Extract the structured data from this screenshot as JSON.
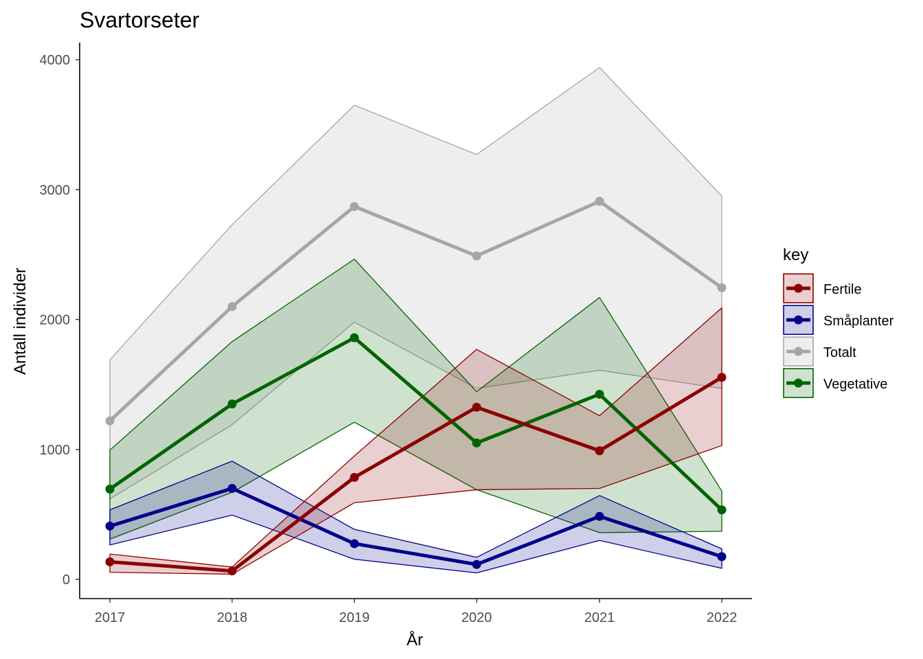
{
  "chart_data": {
    "type": "line",
    "title": "Svartorseter",
    "xlabel": "År",
    "ylabel": "Antall individer",
    "x": [
      "2017",
      "2018",
      "2019",
      "2020",
      "2021",
      "2022"
    ],
    "yticks": [
      "0",
      "1000",
      "2000",
      "3000",
      "4000"
    ],
    "ylim": [
      -150,
      4130
    ],
    "legend_title": "key",
    "legend_position": "right",
    "grid": false,
    "series": [
      {
        "name": "Totalt",
        "color": "#a6a6a6",
        "values": [
          1220,
          2100,
          2870,
          2490,
          2910,
          2245
        ],
        "lower": [
          620,
          1190,
          1980,
          1470,
          1610,
          1470
        ],
        "upper": [
          1690,
          2730,
          3650,
          3270,
          3940,
          2950
        ]
      },
      {
        "name": "Vegetative",
        "color": "#006400",
        "values": [
          695,
          1350,
          1860,
          1050,
          1425,
          535
        ],
        "lower": [
          310,
          670,
          1210,
          690,
          360,
          370
        ],
        "upper": [
          995,
          1830,
          2465,
          1445,
          2170,
          680
        ]
      },
      {
        "name": "Småplanter",
        "color": "#00008b",
        "values": [
          410,
          700,
          275,
          115,
          485,
          175
        ],
        "lower": [
          265,
          495,
          155,
          50,
          300,
          85
        ],
        "upper": [
          535,
          910,
          385,
          170,
          645,
          235
        ]
      },
      {
        "name": "Fertile",
        "color": "#8b0000",
        "values": [
          135,
          65,
          785,
          1325,
          990,
          1555
        ],
        "lower": [
          55,
          40,
          590,
          690,
          700,
          1030
        ],
        "upper": [
          195,
          95,
          950,
          1770,
          1260,
          2090
        ]
      }
    ],
    "legend_order": [
      "Fertile",
      "Småplanter",
      "Totalt",
      "Vegetative"
    ]
  }
}
